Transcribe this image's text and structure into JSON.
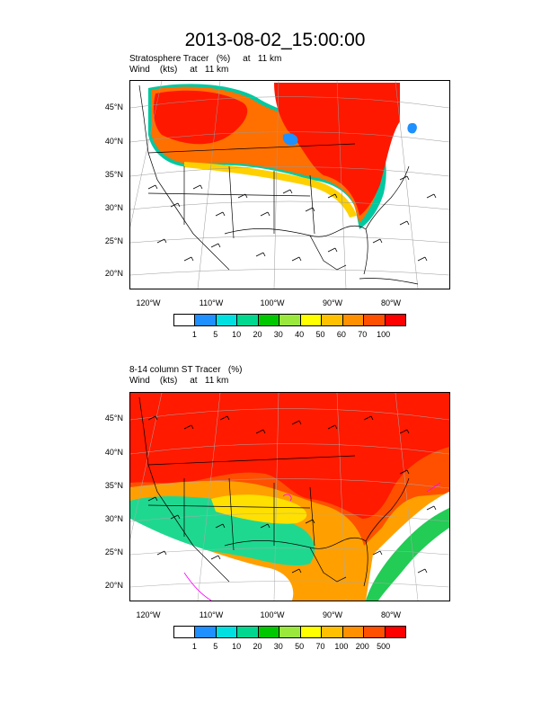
{
  "title": "2013-08-02_15:00:00",
  "panels": [
    {
      "id": "top",
      "subtitle_line1": "Stratosphere Tracer   (%)     at   11 km",
      "subtitle_line2": "Wind    (kts)     at   11 km",
      "lat_labels": [
        "45°N",
        "40°N",
        "35°N",
        "30°N",
        "25°N",
        "20°N"
      ],
      "lon_labels": [
        "120°W",
        "110°W",
        "100°W",
        "90°W",
        "80°W"
      ],
      "colorbar": {
        "colors": [
          "#ffffff",
          "#1e90ff",
          "#00e0e0",
          "#00d890",
          "#00c800",
          "#9be83c",
          "#ffff00",
          "#ffc000",
          "#ff9000",
          "#ff5000",
          "#ff0000"
        ],
        "labels": [
          "1",
          "5",
          "10",
          "20",
          "30",
          "40",
          "50",
          "60",
          "70",
          "100"
        ]
      }
    },
    {
      "id": "bottom",
      "subtitle_line1": "8-14 column ST Tracer   (%)",
      "subtitle_line2": "Wind    (kts)     at   11 km",
      "lat_labels": [
        "45°N",
        "40°N",
        "35°N",
        "30°N",
        "25°N",
        "20°N"
      ],
      "lon_labels": [
        "120°W",
        "110°W",
        "100°W",
        "90°W",
        "80°W"
      ],
      "colorbar": {
        "colors": [
          "#ffffff",
          "#1e90ff",
          "#00e0e0",
          "#00d890",
          "#00c800",
          "#9be83c",
          "#ffff00",
          "#ffc000",
          "#ff9000",
          "#ff5000",
          "#ff0000"
        ],
        "labels": [
          "1",
          "5",
          "10",
          "20",
          "30",
          "50",
          "70",
          "100",
          "200",
          "500"
        ]
      }
    }
  ]
}
